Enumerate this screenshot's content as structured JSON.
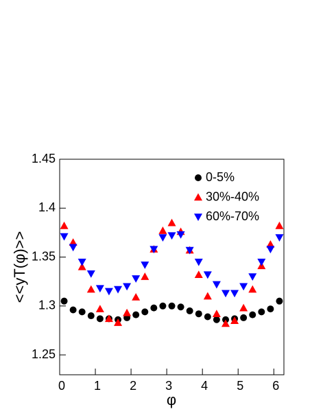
{
  "chart_data": {
    "type": "scatter",
    "xlabel": "φ",
    "ylabel": "<<yT(φ)>>",
    "x": [
      0.126,
      0.377,
      0.628,
      0.88,
      1.131,
      1.382,
      1.634,
      1.885,
      2.136,
      2.388,
      2.639,
      2.89,
      3.142,
      3.393,
      3.644,
      3.896,
      4.147,
      4.398,
      4.65,
      4.901,
      5.152,
      5.404,
      5.655,
      5.906,
      6.157
    ],
    "series": [
      {
        "name": "0-5%",
        "color": "#000000",
        "marker": "circle",
        "values": [
          1.305,
          1.296,
          1.294,
          1.29,
          1.287,
          1.287,
          1.286,
          1.288,
          1.291,
          1.294,
          1.298,
          1.3,
          1.3,
          1.299,
          1.295,
          1.292,
          1.289,
          1.286,
          1.286,
          1.287,
          1.288,
          1.291,
          1.294,
          1.297,
          1.305
        ]
      },
      {
        "name": "30%-40%",
        "color": "#ff0000",
        "marker": "triangle-up",
        "values": [
          1.382,
          1.365,
          1.34,
          1.317,
          1.297,
          1.287,
          1.283,
          1.293,
          1.309,
          1.33,
          1.358,
          1.377,
          1.385,
          1.376,
          1.357,
          1.332,
          1.31,
          1.292,
          1.282,
          1.285,
          1.298,
          1.317,
          1.341,
          1.363,
          1.382
        ]
      },
      {
        "name": "60%-70%",
        "color": "#0000ff",
        "marker": "triangle-down",
        "values": [
          1.371,
          1.36,
          1.345,
          1.333,
          1.318,
          1.315,
          1.317,
          1.32,
          1.328,
          1.342,
          1.358,
          1.37,
          1.372,
          1.373,
          1.357,
          1.345,
          1.332,
          1.322,
          1.313,
          1.313,
          1.32,
          1.33,
          1.345,
          1.358,
          1.37
        ]
      }
    ],
    "xlim": [
      0,
      6.283
    ],
    "xticks": [
      0,
      1,
      2,
      3,
      4,
      5,
      6
    ],
    "ylim": [
      1.2297,
      1.45
    ],
    "yticks": [
      1.25,
      1.3,
      1.35,
      1.4,
      1.45
    ],
    "legend": "upper right"
  }
}
